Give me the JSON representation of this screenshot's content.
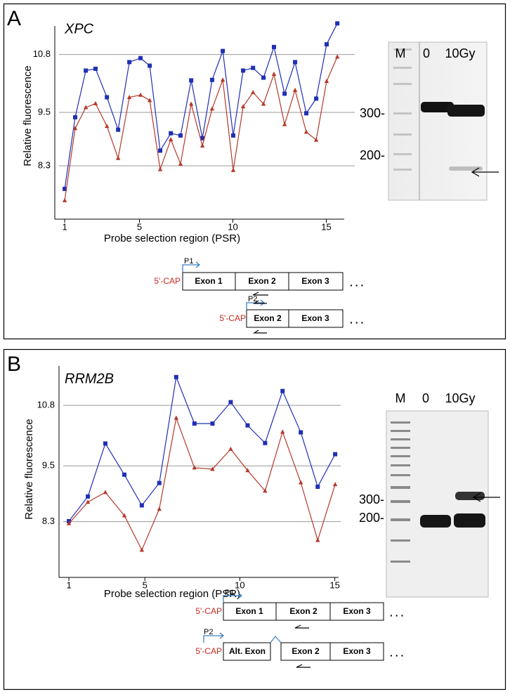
{
  "chart_data": [
    {
      "type": "line",
      "title": "XPC",
      "y_label": "Relative  fluorescence",
      "x_label": "Probe selection region (PSR)",
      "x": [
        1,
        1.56,
        2.13,
        2.65,
        3.26,
        3.86,
        4.46,
        5.06,
        5.55,
        6.11,
        6.68,
        7.2,
        7.77,
        8.37,
        8.89,
        9.46,
        10.02,
        10.55,
        11.08,
        11.64,
        12.2,
        12.77,
        13.33,
        13.93,
        14.46,
        15.02,
        15.59
      ],
      "series": [
        {
          "color": "#1f2fb5",
          "marker": "square",
          "values": [
            7.78,
            9.39,
            10.44,
            10.48,
            9.84,
            9.11,
            10.63,
            10.72,
            10.55,
            8.64,
            9.03,
            8.98,
            10.22,
            8.92,
            10.23,
            10.88,
            8.98,
            10.44,
            10.5,
            10.28,
            10.97,
            9.92,
            10.63,
            9.48,
            9.81,
            11.03,
            11.5
          ]
        },
        {
          "color": "#b5392b",
          "marker": "triangle",
          "values": [
            7.52,
            9.14,
            9.61,
            9.7,
            9.19,
            8.47,
            9.84,
            9.89,
            9.77,
            8.22,
            8.89,
            8.34,
            9.69,
            8.75,
            9.58,
            10.23,
            8.2,
            9.63,
            9.95,
            9.69,
            10.36,
            9.23,
            10.0,
            9.06,
            8.88,
            10.2,
            10.75
          ]
        }
      ],
      "xlim": [
        0.47,
        15.96
      ],
      "xticks": [
        1,
        5,
        10,
        15
      ],
      "ylim": [
        7.1,
        11.6
      ],
      "yticks": [
        8.3,
        9.5,
        10.8
      ],
      "grid": true
    },
    {
      "type": "line",
      "title": "RRM2B",
      "y_label": "Relative  fluorescence",
      "x_label": "Probe selection region (PSR)",
      "x": [
        1,
        2.0,
        2.92,
        3.92,
        4.84,
        5.76,
        6.65,
        7.61,
        8.56,
        9.52,
        10.41,
        11.33,
        12.25,
        13.21,
        14.1,
        15.02
      ],
      "series": [
        {
          "color": "#1f2fb5",
          "marker": "square",
          "values": [
            8.31,
            8.84,
            9.98,
            9.31,
            8.65,
            9.13,
            11.41,
            10.41,
            10.41,
            10.87,
            10.37,
            9.99,
            11.11,
            10.22,
            9.05,
            9.75
          ]
        },
        {
          "color": "#b5392b",
          "marker": "triangle",
          "values": [
            8.26,
            8.72,
            8.93,
            8.43,
            7.69,
            8.57,
            10.53,
            9.46,
            9.43,
            9.86,
            9.4,
            8.96,
            10.23,
            9.14,
            7.9,
            9.1
          ]
        }
      ],
      "xlim": [
        0.48,
        15.2
      ],
      "xticks": [
        1,
        5,
        10,
        15
      ],
      "ylim": [
        7.1,
        11.8
      ],
      "yticks": [
        8.3,
        9.5,
        10.8
      ],
      "grid": true
    }
  ],
  "panels": [
    {
      "label": "A",
      "gel_lanes": [
        "M",
        "0",
        "10Gy"
      ],
      "gel_sizes": [
        "300-",
        "200-"
      ],
      "diagram": [
        {
          "cap": "5'-CAP",
          "primer": "P1",
          "exons": [
            "Exon 1",
            "Exon 2",
            "Exon 3"
          ],
          "more": ". . ."
        },
        {
          "cap": "5'-CAP",
          "primer": "P2",
          "exons": [
            "Exon 2",
            "Exon 3"
          ],
          "more": ". . ."
        }
      ]
    },
    {
      "label": "B",
      "gel_lanes": [
        "M",
        "0",
        "10Gy"
      ],
      "gel_sizes": [
        "300-",
        "200-"
      ],
      "diagram": [
        {
          "cap": "5'-CAP",
          "primer": "P1",
          "exons": [
            "Exon 1",
            "Exon 2",
            "Exon 3"
          ],
          "more": ". . ."
        },
        {
          "cap": "5'-CAP",
          "primer": "P2",
          "exons": [
            "Alt. Exon",
            "Exon 2",
            "Exon 3"
          ],
          "more": ". . ."
        }
      ]
    }
  ]
}
